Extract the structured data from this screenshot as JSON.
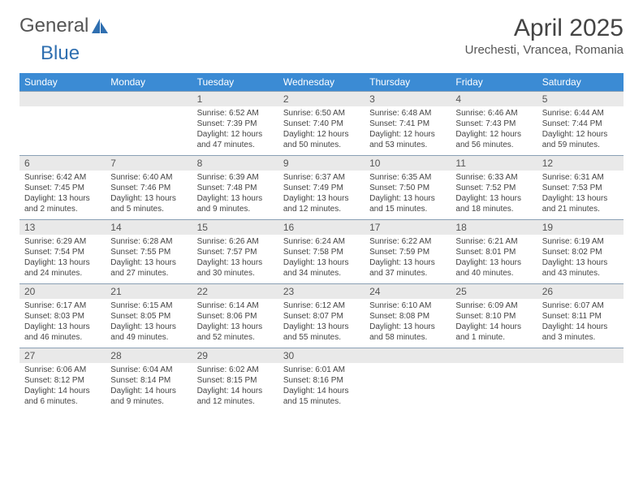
{
  "brand": {
    "part1": "General",
    "part2": "Blue"
  },
  "title": "April 2025",
  "location": "Urechesti, Vrancea, Romania",
  "colors": {
    "header_bg": "#3b8bd4",
    "header_fg": "#ffffff",
    "daynum_bg": "#e9e9e9",
    "rule": "#8aa0b5",
    "text": "#444444",
    "brand_gray": "#555555",
    "brand_blue": "#2f6fb0"
  },
  "dow": [
    "Sunday",
    "Monday",
    "Tuesday",
    "Wednesday",
    "Thursday",
    "Friday",
    "Saturday"
  ],
  "weeks": [
    [
      null,
      null,
      {
        "n": "1",
        "sr": "Sunrise: 6:52 AM",
        "ss": "Sunset: 7:39 PM",
        "dl": "Daylight: 12 hours and 47 minutes."
      },
      {
        "n": "2",
        "sr": "Sunrise: 6:50 AM",
        "ss": "Sunset: 7:40 PM",
        "dl": "Daylight: 12 hours and 50 minutes."
      },
      {
        "n": "3",
        "sr": "Sunrise: 6:48 AM",
        "ss": "Sunset: 7:41 PM",
        "dl": "Daylight: 12 hours and 53 minutes."
      },
      {
        "n": "4",
        "sr": "Sunrise: 6:46 AM",
        "ss": "Sunset: 7:43 PM",
        "dl": "Daylight: 12 hours and 56 minutes."
      },
      {
        "n": "5",
        "sr": "Sunrise: 6:44 AM",
        "ss": "Sunset: 7:44 PM",
        "dl": "Daylight: 12 hours and 59 minutes."
      }
    ],
    [
      {
        "n": "6",
        "sr": "Sunrise: 6:42 AM",
        "ss": "Sunset: 7:45 PM",
        "dl": "Daylight: 13 hours and 2 minutes."
      },
      {
        "n": "7",
        "sr": "Sunrise: 6:40 AM",
        "ss": "Sunset: 7:46 PM",
        "dl": "Daylight: 13 hours and 5 minutes."
      },
      {
        "n": "8",
        "sr": "Sunrise: 6:39 AM",
        "ss": "Sunset: 7:48 PM",
        "dl": "Daylight: 13 hours and 9 minutes."
      },
      {
        "n": "9",
        "sr": "Sunrise: 6:37 AM",
        "ss": "Sunset: 7:49 PM",
        "dl": "Daylight: 13 hours and 12 minutes."
      },
      {
        "n": "10",
        "sr": "Sunrise: 6:35 AM",
        "ss": "Sunset: 7:50 PM",
        "dl": "Daylight: 13 hours and 15 minutes."
      },
      {
        "n": "11",
        "sr": "Sunrise: 6:33 AM",
        "ss": "Sunset: 7:52 PM",
        "dl": "Daylight: 13 hours and 18 minutes."
      },
      {
        "n": "12",
        "sr": "Sunrise: 6:31 AM",
        "ss": "Sunset: 7:53 PM",
        "dl": "Daylight: 13 hours and 21 minutes."
      }
    ],
    [
      {
        "n": "13",
        "sr": "Sunrise: 6:29 AM",
        "ss": "Sunset: 7:54 PM",
        "dl": "Daylight: 13 hours and 24 minutes."
      },
      {
        "n": "14",
        "sr": "Sunrise: 6:28 AM",
        "ss": "Sunset: 7:55 PM",
        "dl": "Daylight: 13 hours and 27 minutes."
      },
      {
        "n": "15",
        "sr": "Sunrise: 6:26 AM",
        "ss": "Sunset: 7:57 PM",
        "dl": "Daylight: 13 hours and 30 minutes."
      },
      {
        "n": "16",
        "sr": "Sunrise: 6:24 AM",
        "ss": "Sunset: 7:58 PM",
        "dl": "Daylight: 13 hours and 34 minutes."
      },
      {
        "n": "17",
        "sr": "Sunrise: 6:22 AM",
        "ss": "Sunset: 7:59 PM",
        "dl": "Daylight: 13 hours and 37 minutes."
      },
      {
        "n": "18",
        "sr": "Sunrise: 6:21 AM",
        "ss": "Sunset: 8:01 PM",
        "dl": "Daylight: 13 hours and 40 minutes."
      },
      {
        "n": "19",
        "sr": "Sunrise: 6:19 AM",
        "ss": "Sunset: 8:02 PM",
        "dl": "Daylight: 13 hours and 43 minutes."
      }
    ],
    [
      {
        "n": "20",
        "sr": "Sunrise: 6:17 AM",
        "ss": "Sunset: 8:03 PM",
        "dl": "Daylight: 13 hours and 46 minutes."
      },
      {
        "n": "21",
        "sr": "Sunrise: 6:15 AM",
        "ss": "Sunset: 8:05 PM",
        "dl": "Daylight: 13 hours and 49 minutes."
      },
      {
        "n": "22",
        "sr": "Sunrise: 6:14 AM",
        "ss": "Sunset: 8:06 PM",
        "dl": "Daylight: 13 hours and 52 minutes."
      },
      {
        "n": "23",
        "sr": "Sunrise: 6:12 AM",
        "ss": "Sunset: 8:07 PM",
        "dl": "Daylight: 13 hours and 55 minutes."
      },
      {
        "n": "24",
        "sr": "Sunrise: 6:10 AM",
        "ss": "Sunset: 8:08 PM",
        "dl": "Daylight: 13 hours and 58 minutes."
      },
      {
        "n": "25",
        "sr": "Sunrise: 6:09 AM",
        "ss": "Sunset: 8:10 PM",
        "dl": "Daylight: 14 hours and 1 minute."
      },
      {
        "n": "26",
        "sr": "Sunrise: 6:07 AM",
        "ss": "Sunset: 8:11 PM",
        "dl": "Daylight: 14 hours and 3 minutes."
      }
    ],
    [
      {
        "n": "27",
        "sr": "Sunrise: 6:06 AM",
        "ss": "Sunset: 8:12 PM",
        "dl": "Daylight: 14 hours and 6 minutes."
      },
      {
        "n": "28",
        "sr": "Sunrise: 6:04 AM",
        "ss": "Sunset: 8:14 PM",
        "dl": "Daylight: 14 hours and 9 minutes."
      },
      {
        "n": "29",
        "sr": "Sunrise: 6:02 AM",
        "ss": "Sunset: 8:15 PM",
        "dl": "Daylight: 14 hours and 12 minutes."
      },
      {
        "n": "30",
        "sr": "Sunrise: 6:01 AM",
        "ss": "Sunset: 8:16 PM",
        "dl": "Daylight: 14 hours and 15 minutes."
      },
      null,
      null,
      null
    ]
  ]
}
